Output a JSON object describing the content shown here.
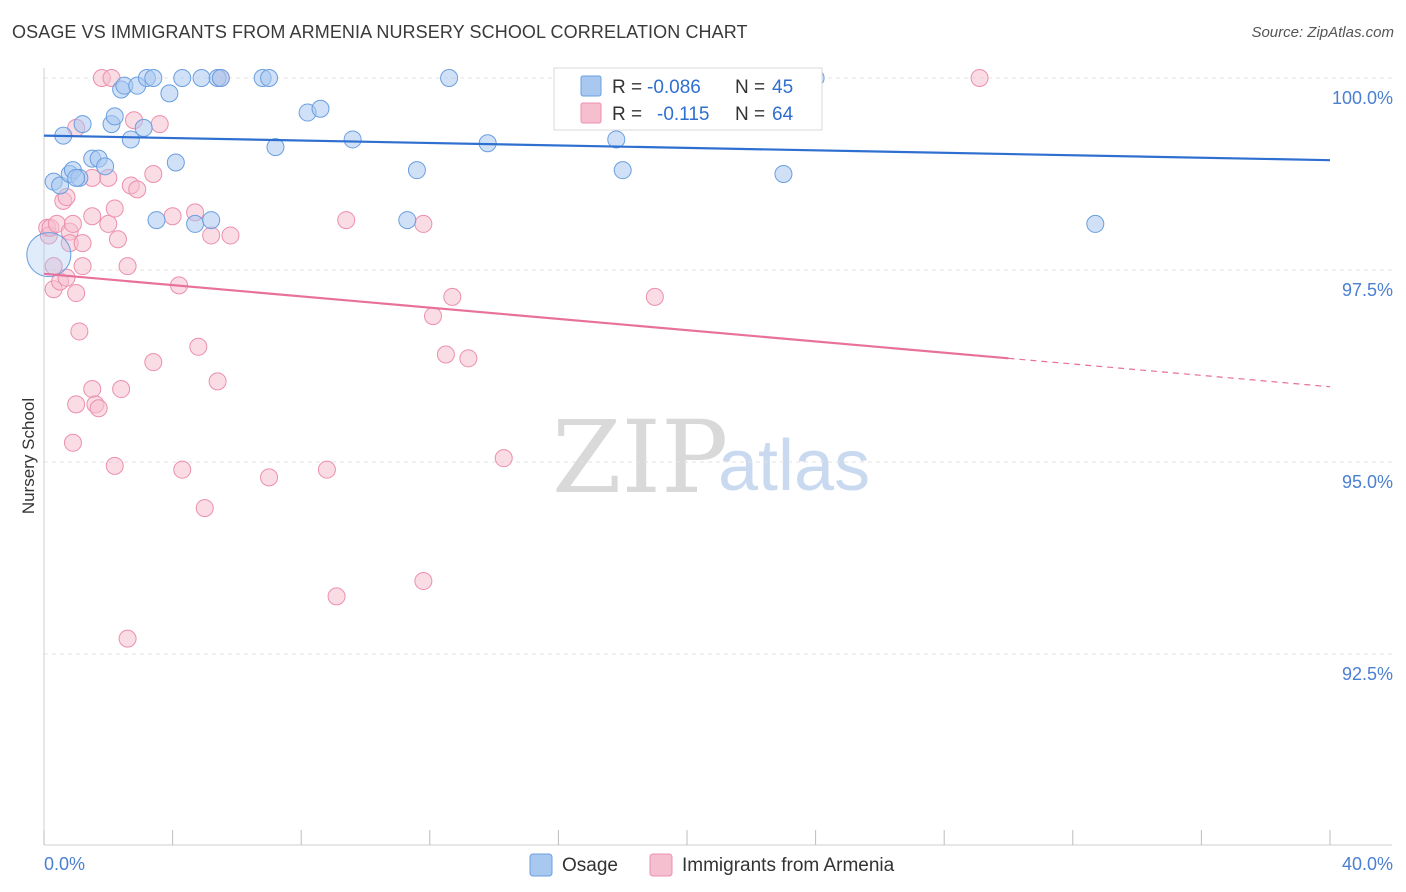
{
  "title": "OSAGE VS IMMIGRANTS FROM ARMENIA NURSERY SCHOOL CORRELATION CHART",
  "source": "Source: ZipAtlas.com",
  "watermark": {
    "zip": "ZIP",
    "atlas": "atlas"
  },
  "colors": {
    "blue_fill": "#a9c8f0",
    "blue_stroke": "#6a9fe0",
    "blue_line": "#2f6fd0",
    "pink_fill": "#f6bfd0",
    "pink_stroke": "#ec8fae",
    "pink_line": "#e8719a",
    "grid": "#e3e3e3",
    "tick_text": "#4a7fd1"
  },
  "legend": {
    "row1": {
      "r_label": "R =",
      "r_value": "-0.086",
      "n_label": "N =",
      "n_value": "45"
    },
    "row2": {
      "r_label": "R =",
      "r_value": "-0.115",
      "n_label": "N =",
      "n_value": "64"
    }
  },
  "chart_data": {
    "type": "scatter",
    "title": "OSAGE VS IMMIGRANTS FROM ARMENIA NURSERY SCHOOL CORRELATION CHART",
    "xlabel": "",
    "ylabel": "Nursery School",
    "xlim": [
      0,
      40
    ],
    "ylim": [
      90.2,
      100.4
    ],
    "x_tick_labels": [
      "0.0%",
      "40.0%"
    ],
    "y_ticks": [
      92.5,
      95.0,
      97.5,
      100.0
    ],
    "y_tick_labels": [
      "92.5%",
      "95.0%",
      "97.5%",
      "100.0%"
    ],
    "legend_placement": "top-center",
    "series": [
      {
        "name": "Osage",
        "color": "#a9c8f0",
        "r": -0.086,
        "n": 45,
        "trend": {
          "x0": 0,
          "y0": 99.25,
          "x1": 40,
          "y1": 98.93
        },
        "points": [
          [
            0.3,
            98.65
          ],
          [
            0.5,
            98.6
          ],
          [
            0.6,
            99.25
          ],
          [
            0.8,
            98.75
          ],
          [
            0.9,
            98.8
          ],
          [
            1.1,
            98.7
          ],
          [
            1.2,
            99.4
          ],
          [
            1.5,
            98.95
          ],
          [
            1.7,
            98.95
          ],
          [
            1.9,
            98.85
          ],
          [
            2.1,
            99.4
          ],
          [
            2.2,
            99.5
          ],
          [
            2.4,
            99.85
          ],
          [
            2.5,
            99.9
          ],
          [
            2.7,
            99.2
          ],
          [
            2.9,
            99.9
          ],
          [
            3.1,
            99.35
          ],
          [
            3.2,
            100.0
          ],
          [
            3.4,
            100.0
          ],
          [
            3.5,
            98.15
          ],
          [
            3.9,
            99.8
          ],
          [
            4.1,
            98.9
          ],
          [
            4.3,
            100.0
          ],
          [
            4.7,
            98.1
          ],
          [
            4.9,
            100.0
          ],
          [
            5.2,
            98.15
          ],
          [
            5.4,
            100.0
          ],
          [
            6.8,
            100.0
          ],
          [
            7.0,
            100.0
          ],
          [
            7.2,
            99.1
          ],
          [
            8.2,
            99.55
          ],
          [
            8.6,
            99.6
          ],
          [
            9.6,
            99.2
          ],
          [
            11.3,
            98.15
          ],
          [
            11.6,
            98.8
          ],
          [
            12.6,
            100.0
          ],
          [
            13.8,
            99.15
          ],
          [
            17.8,
            99.2
          ],
          [
            18.0,
            98.8
          ],
          [
            23.0,
            98.75
          ],
          [
            24.0,
            100.0
          ],
          [
            32.7,
            98.1
          ],
          [
            0.15,
            97.7
          ],
          [
            5.5,
            100.0
          ],
          [
            1.0,
            98.7
          ]
        ]
      },
      {
        "name": "Immigrants from Armenia",
        "color": "#f6bfd0",
        "r": -0.115,
        "n": 64,
        "trend": {
          "x0": 0,
          "y0": 97.45,
          "x1": 30,
          "y1": 96.35,
          "dash_x1": 40,
          "dash_y1": 95.98
        },
        "points": [
          [
            0.1,
            98.05
          ],
          [
            0.15,
            97.95
          ],
          [
            0.2,
            98.05
          ],
          [
            0.3,
            97.25
          ],
          [
            0.3,
            97.55
          ],
          [
            0.4,
            98.1
          ],
          [
            0.5,
            97.35
          ],
          [
            0.6,
            98.4
          ],
          [
            0.7,
            98.45
          ],
          [
            0.7,
            97.4
          ],
          [
            0.8,
            98.0
          ],
          [
            0.8,
            97.85
          ],
          [
            0.9,
            98.1
          ],
          [
            0.9,
            95.25
          ],
          [
            1.0,
            97.2
          ],
          [
            1.0,
            99.35
          ],
          [
            1.0,
            95.75
          ],
          [
            1.1,
            96.7
          ],
          [
            1.2,
            97.55
          ],
          [
            1.2,
            97.85
          ],
          [
            1.5,
            98.2
          ],
          [
            1.5,
            98.7
          ],
          [
            1.5,
            95.95
          ],
          [
            1.6,
            95.75
          ],
          [
            1.7,
            95.7
          ],
          [
            1.8,
            100.0
          ],
          [
            2.0,
            98.7
          ],
          [
            2.0,
            98.1
          ],
          [
            2.1,
            100.0
          ],
          [
            2.2,
            98.3
          ],
          [
            2.2,
            94.95
          ],
          [
            2.3,
            97.9
          ],
          [
            2.4,
            95.95
          ],
          [
            2.6,
            97.55
          ],
          [
            2.6,
            92.7
          ],
          [
            2.7,
            98.6
          ],
          [
            2.8,
            99.45
          ],
          [
            2.9,
            98.55
          ],
          [
            3.4,
            96.3
          ],
          [
            3.4,
            98.75
          ],
          [
            3.6,
            99.4
          ],
          [
            4.0,
            98.2
          ],
          [
            4.2,
            97.3
          ],
          [
            4.3,
            94.9
          ],
          [
            4.7,
            98.25
          ],
          [
            4.8,
            96.5
          ],
          [
            5.0,
            94.4
          ],
          [
            5.2,
            97.95
          ],
          [
            5.4,
            96.05
          ],
          [
            5.5,
            100.0
          ],
          [
            5.8,
            97.95
          ],
          [
            7.0,
            94.8
          ],
          [
            8.8,
            94.9
          ],
          [
            9.1,
            93.25
          ],
          [
            9.4,
            98.15
          ],
          [
            11.8,
            98.1
          ],
          [
            11.8,
            93.45
          ],
          [
            12.1,
            96.9
          ],
          [
            12.5,
            96.4
          ],
          [
            12.7,
            97.15
          ],
          [
            13.2,
            96.35
          ],
          [
            14.3,
            95.05
          ],
          [
            19.0,
            97.15
          ],
          [
            29.1,
            100.0
          ]
        ]
      }
    ]
  },
  "bottom_legend": {
    "osage": "Osage",
    "armenia": "Immigrants from Armenia"
  }
}
